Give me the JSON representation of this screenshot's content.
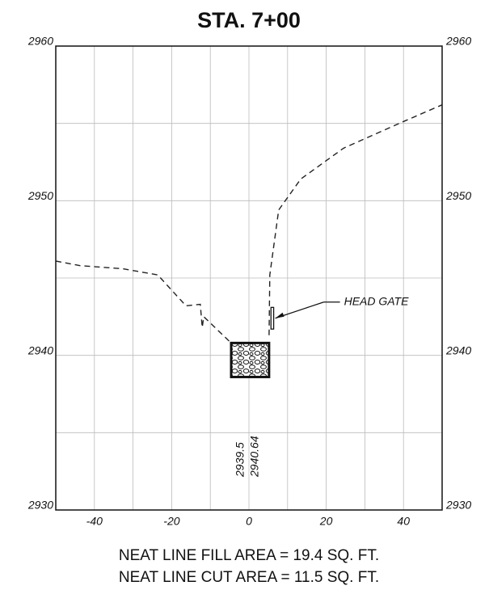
{
  "chart_data": {
    "type": "line",
    "title": "STA. 7+00",
    "xlim": [
      -50,
      50
    ],
    "ylim": [
      2930,
      2960
    ],
    "xticks": [
      -40,
      -20,
      0,
      20,
      40
    ],
    "yticks": [
      2930,
      2940,
      2950,
      2960
    ],
    "grid": true,
    "series": [
      {
        "color": "#222222",
        "x": [
          -50,
          -43.7,
          -32.6,
          -23.6,
          -16.3,
          -12.6,
          -12.1,
          -11.7,
          -4.2
        ],
        "values": [
          2946.1,
          2945.8,
          2945.6,
          2945.2,
          2943.2,
          2943.3,
          2941.8,
          2942.5,
          2940.7
        ]
      },
      {
        "color": "#222222",
        "x": [
          5.2,
          5.4,
          7.7,
          13.4,
          24.5,
          39.8,
          50
        ],
        "values": [
          2941.3,
          2945.2,
          2949.4,
          2951.4,
          2953.4,
          2955.1,
          2956.2
        ]
      }
    ],
    "boxes": [
      {
        "x": [
          -4.6,
          5.2
        ],
        "y": [
          2938.6,
          2940.8
        ]
      }
    ],
    "gates": [
      {
        "x": [
          5.7,
          6.4
        ],
        "y": [
          2941.7,
          2943.1
        ]
      }
    ],
    "annotation": {
      "text": "HEAD GATE",
      "x": 6.4,
      "y": 2942.4
    },
    "elevation_labels": [
      2939.5,
      2940.64
    ],
    "notes": [
      "NEAT LINE FILL AREA = 19.4 SQ. FT.",
      "NEAT LINE CUT AREA = 11.5 SQ. FT."
    ]
  }
}
